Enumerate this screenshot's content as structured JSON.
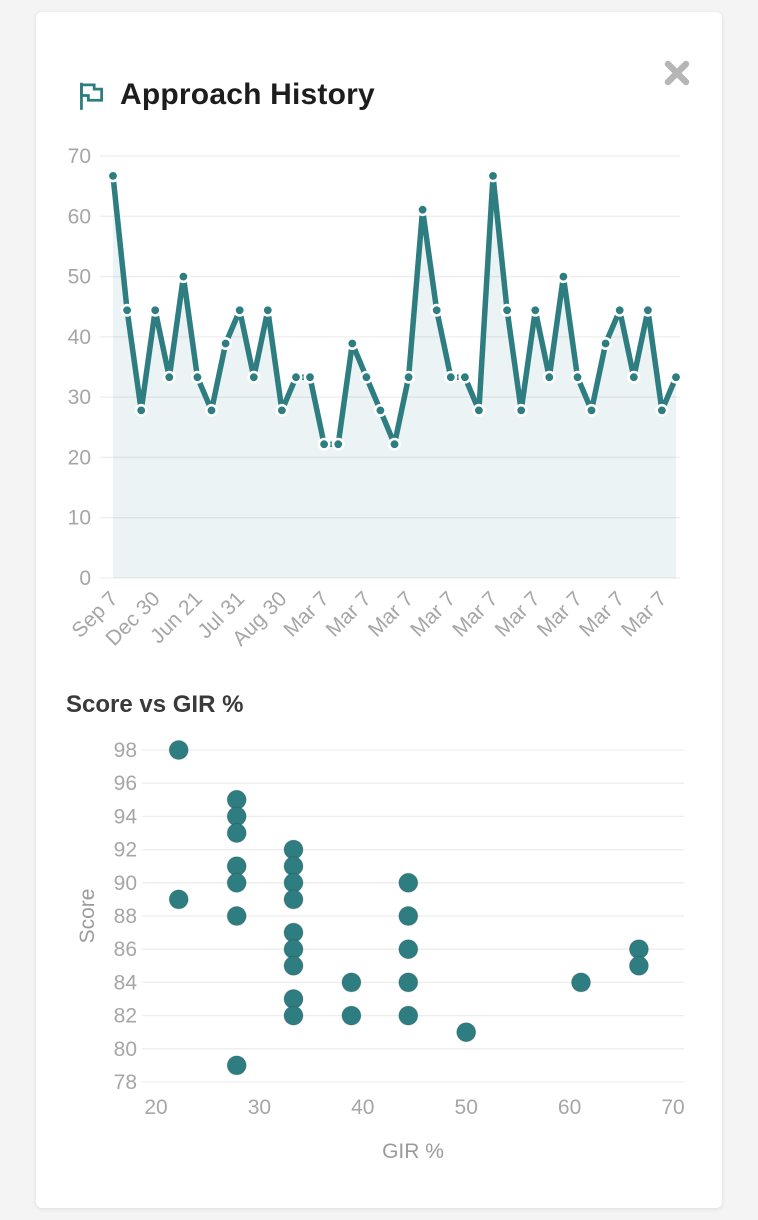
{
  "modal": {
    "title": "Approach History",
    "title_icon": "flag-icon",
    "close_icon": "close-icon"
  },
  "colors": {
    "accent": "#2e7d80",
    "area_fill": "#2e7d80",
    "grid": "#ededed",
    "tick": "#a6a6a6",
    "axis_label": "#9b9b9b",
    "heading": "#1d1d1d",
    "subheading": "#3a3a3a",
    "close": "#b6b6b6",
    "card_bg": "#ffffff",
    "page_bg": "#f3f4f3"
  },
  "chart_data": [
    {
      "type": "area",
      "title": "Approach History",
      "xlabel": "",
      "ylabel": "",
      "ylim": [
        0,
        70
      ],
      "yticks": [
        0,
        10,
        20,
        30,
        40,
        50,
        60,
        70
      ],
      "grid": true,
      "legend": "none",
      "x_labels_every": 3,
      "x_tick_labels": [
        "Sep 7",
        "Dec 30",
        "Jun 21",
        "Jul 31",
        "Aug 30",
        "Mar 7",
        "Mar 7",
        "Mar 7",
        "Mar 7",
        "Mar 7",
        "Mar 7",
        "Mar 7",
        "Mar 7",
        "Mar 7"
      ],
      "values": [
        66.7,
        44.4,
        27.8,
        44.4,
        33.3,
        50.0,
        33.3,
        27.8,
        38.9,
        44.4,
        33.3,
        44.4,
        27.8,
        33.3,
        33.3,
        22.2,
        22.2,
        38.9,
        33.3,
        27.8,
        22.2,
        33.3,
        61.1,
        44.4,
        33.3,
        33.3,
        27.8,
        66.7,
        44.4,
        27.8,
        44.4,
        33.3,
        50.0,
        33.3,
        27.8,
        38.9,
        44.4,
        33.3,
        44.4,
        27.8,
        33.3
      ]
    },
    {
      "type": "scatter",
      "title": "Score vs GIR %",
      "xlabel": "GIR %",
      "ylabel": "Score",
      "xlim": [
        17.5,
        71
      ],
      "ylim": [
        77,
        99
      ],
      "xticks": [
        20,
        30,
        40,
        50,
        60,
        70
      ],
      "yticks": [
        78,
        80,
        82,
        84,
        86,
        88,
        90,
        92,
        94,
        96,
        98
      ],
      "grid": true,
      "legend": "none",
      "points": [
        [
          22.2,
          98
        ],
        [
          22.2,
          89
        ],
        [
          27.8,
          95
        ],
        [
          27.8,
          94
        ],
        [
          27.8,
          93
        ],
        [
          27.8,
          91
        ],
        [
          27.8,
          90
        ],
        [
          27.8,
          88
        ],
        [
          27.8,
          79
        ],
        [
          33.3,
          92
        ],
        [
          33.3,
          91
        ],
        [
          33.3,
          90
        ],
        [
          33.3,
          89
        ],
        [
          33.3,
          87
        ],
        [
          33.3,
          86
        ],
        [
          33.3,
          85
        ],
        [
          33.3,
          83
        ],
        [
          33.3,
          82
        ],
        [
          38.9,
          84
        ],
        [
          38.9,
          82
        ],
        [
          44.4,
          90
        ],
        [
          44.4,
          88
        ],
        [
          44.4,
          86
        ],
        [
          44.4,
          84
        ],
        [
          44.4,
          82
        ],
        [
          50.0,
          81
        ],
        [
          61.1,
          84
        ],
        [
          66.7,
          86
        ],
        [
          66.7,
          85
        ]
      ]
    }
  ]
}
